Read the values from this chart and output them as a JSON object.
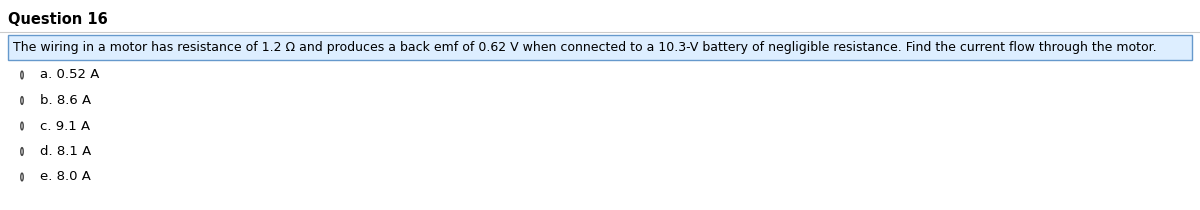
{
  "title": "Question 16",
  "question_text": "The wiring in a motor has resistance of 1.2 Ω and produces a back emf of 0.62 V when connected to a 10.3-V battery of negligible resistance. Find the current flow through the motor.",
  "options": [
    "a. 0.52 A",
    "b. 8.6 A",
    "c. 9.1 A",
    "d. 8.1 A",
    "e. 8.0 A"
  ],
  "background_color": "#ffffff",
  "title_color": "#000000",
  "question_bg_color": "#ddeeff",
  "question_border_color": "#6699cc",
  "option_text_color": "#000000",
  "title_fontsize": 10.5,
  "question_fontsize": 9.0,
  "option_fontsize": 9.5,
  "circle_color": "#444444",
  "separator_color": "#cccccc"
}
